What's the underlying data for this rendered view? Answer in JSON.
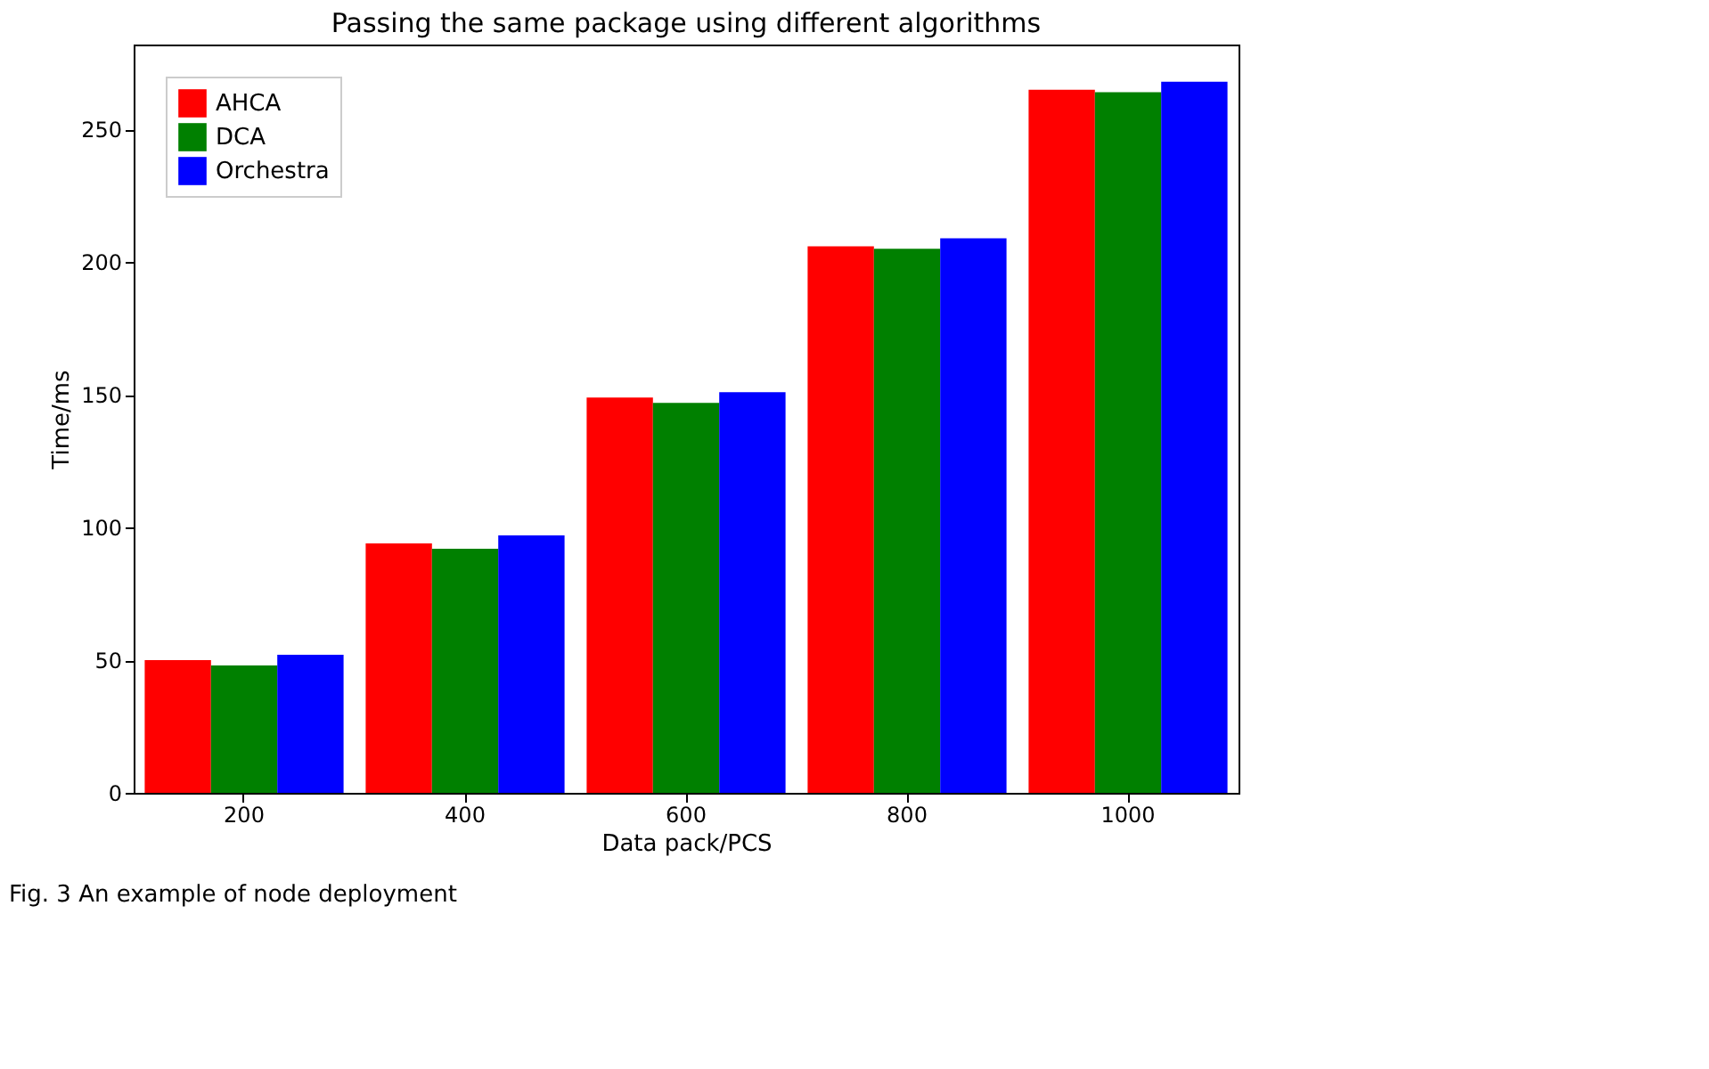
{
  "chart_data": {
    "type": "bar",
    "title": "Passing the same package using different algorithms",
    "xlabel": "Data pack/PCS",
    "ylabel": "Time/ms",
    "categories": [
      "200",
      "400",
      "600",
      "800",
      "1000"
    ],
    "series": [
      {
        "name": "AHCA",
        "color": "#ff0000",
        "values": [
          50,
          94,
          149,
          206,
          265
        ]
      },
      {
        "name": "DCA",
        "color": "#008000",
        "values": [
          48,
          92,
          147,
          205,
          264
        ]
      },
      {
        "name": "Orchestra",
        "color": "#0000ff",
        "values": [
          52,
          97,
          151,
          209,
          268
        ]
      }
    ],
    "ylim": [
      0,
      282
    ],
    "yticks": [
      0,
      50,
      100,
      150,
      200,
      250
    ],
    "grid": false,
    "legend": "top left",
    "annotations": [
      "Fig. 3 An example of node deployment"
    ]
  }
}
